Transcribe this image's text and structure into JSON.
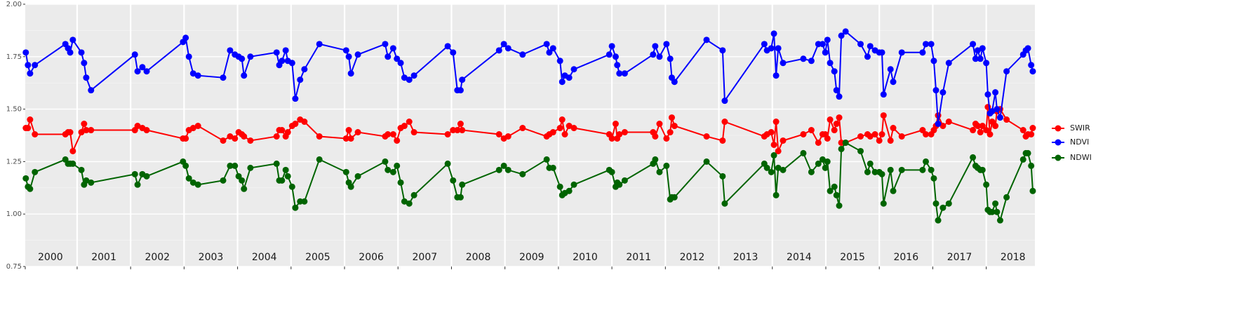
{
  "chart_data": {
    "type": "line",
    "x": [
      2000.04,
      2000.08,
      2000.12,
      2000.21,
      2000.78,
      2000.83,
      2000.87,
      2000.92,
      2001.08,
      2001.13,
      2001.17,
      2001.26,
      2002.08,
      2002.13,
      2002.22,
      2002.3,
      2002.98,
      2003.03,
      2003.09,
      2003.17,
      2003.26,
      2003.73,
      2003.86,
      2003.95,
      2004.02,
      2004.08,
      2004.12,
      2004.24,
      2004.73,
      2004.78,
      2004.83,
      2004.9,
      2004.94,
      2005.02,
      2005.08,
      2005.17,
      2005.25,
      2005.53,
      2006.03,
      2006.08,
      2006.12,
      2006.25,
      2006.76,
      2006.81,
      2006.91,
      2006.98,
      2007.05,
      2007.12,
      2007.21,
      2007.3,
      2007.93,
      2008.03,
      2008.11,
      2008.17,
      2008.2,
      2008.89,
      2008.98,
      2009.06,
      2009.33,
      2009.78,
      2009.83,
      2009.9,
      2010.03,
      2010.07,
      2010.12,
      2010.2,
      2010.29,
      2010.95,
      2011.0,
      2011.07,
      2011.1,
      2011.14,
      2011.24,
      2011.77,
      2011.81,
      2011.89,
      2012.02,
      2012.09,
      2012.12,
      2012.17,
      2012.77,
      2013.07,
      2013.11,
      2013.85,
      2013.9,
      2013.98,
      2014.03,
      2014.07,
      2014.11,
      2014.2,
      2014.58,
      2014.73,
      2014.86,
      2014.94,
      2014.99,
      2015.03,
      2015.08,
      2015.16,
      2015.2,
      2015.25,
      2015.29,
      2015.37,
      2015.65,
      2015.78,
      2015.83,
      2015.92,
      2016.0,
      2016.05,
      2016.08,
      2016.21,
      2016.26,
      2016.42,
      2016.81,
      2016.87,
      2016.97,
      2017.02,
      2017.06,
      2017.1,
      2017.19,
      2017.3,
      2017.75,
      2017.8,
      2017.84,
      2017.89,
      2017.93,
      2018.0,
      2018.03,
      2018.07,
      2018.11,
      2018.17,
      2018.2,
      2018.26,
      2018.38,
      2018.69,
      2018.74,
      2018.78,
      2018.84,
      2018.87
    ],
    "series": [
      {
        "name": "SWIR",
        "color": "#ff0000",
        "values": [
          1.41,
          1.41,
          1.45,
          1.38,
          1.38,
          1.39,
          1.39,
          1.3,
          1.39,
          1.43,
          1.4,
          1.4,
          1.4,
          1.42,
          1.41,
          1.4,
          1.36,
          1.36,
          1.4,
          1.41,
          1.42,
          1.35,
          1.37,
          1.36,
          1.39,
          1.38,
          1.37,
          1.35,
          1.37,
          1.4,
          1.4,
          1.37,
          1.39,
          1.42,
          1.43,
          1.45,
          1.44,
          1.37,
          1.36,
          1.4,
          1.36,
          1.39,
          1.37,
          1.38,
          1.38,
          1.35,
          1.41,
          1.42,
          1.44,
          1.39,
          1.38,
          1.4,
          1.4,
          1.43,
          1.4,
          1.38,
          1.36,
          1.37,
          1.41,
          1.37,
          1.38,
          1.39,
          1.41,
          1.45,
          1.38,
          1.42,
          1.41,
          1.38,
          1.36,
          1.43,
          1.36,
          1.38,
          1.39,
          1.39,
          1.37,
          1.43,
          1.36,
          1.39,
          1.46,
          1.42,
          1.37,
          1.35,
          1.44,
          1.37,
          1.38,
          1.39,
          1.33,
          1.44,
          1.3,
          1.35,
          1.38,
          1.4,
          1.34,
          1.38,
          1.38,
          1.36,
          1.45,
          1.4,
          1.43,
          1.46,
          1.34,
          1.34,
          1.37,
          1.38,
          1.37,
          1.38,
          1.35,
          1.38,
          1.47,
          1.35,
          1.41,
          1.37,
          1.4,
          1.38,
          1.38,
          1.4,
          1.42,
          1.47,
          1.42,
          1.44,
          1.4,
          1.43,
          1.42,
          1.39,
          1.42,
          1.4,
          1.51,
          1.38,
          1.44,
          1.42,
          1.49,
          1.5,
          1.45,
          1.4,
          1.37,
          1.38,
          1.38,
          1.41
        ]
      },
      {
        "name": "NDVI",
        "color": "#0000ff",
        "values": [
          1.77,
          1.71,
          1.67,
          1.71,
          1.81,
          1.79,
          1.77,
          1.83,
          1.77,
          1.72,
          1.65,
          1.59,
          1.76,
          1.68,
          1.7,
          1.68,
          1.82,
          1.84,
          1.75,
          1.67,
          1.66,
          1.65,
          1.78,
          1.76,
          1.75,
          1.74,
          1.66,
          1.75,
          1.77,
          1.71,
          1.73,
          1.78,
          1.73,
          1.72,
          1.55,
          1.64,
          1.69,
          1.81,
          1.78,
          1.75,
          1.67,
          1.76,
          1.81,
          1.75,
          1.79,
          1.74,
          1.72,
          1.65,
          1.64,
          1.66,
          1.8,
          1.77,
          1.59,
          1.59,
          1.64,
          1.78,
          1.81,
          1.79,
          1.76,
          1.81,
          1.77,
          1.79,
          1.73,
          1.63,
          1.66,
          1.65,
          1.69,
          1.76,
          1.8,
          1.75,
          1.71,
          1.67,
          1.67,
          1.76,
          1.8,
          1.75,
          1.81,
          1.74,
          1.65,
          1.63,
          1.83,
          1.78,
          1.54,
          1.81,
          1.78,
          1.79,
          1.86,
          1.66,
          1.79,
          1.72,
          1.74,
          1.73,
          1.81,
          1.81,
          1.77,
          1.83,
          1.72,
          1.68,
          1.59,
          1.56,
          1.85,
          1.87,
          1.81,
          1.75,
          1.8,
          1.78,
          1.77,
          1.77,
          1.57,
          1.69,
          1.63,
          1.77,
          1.77,
          1.81,
          1.81,
          1.73,
          1.59,
          1.43,
          1.58,
          1.72,
          1.81,
          1.74,
          1.78,
          1.74,
          1.79,
          1.72,
          1.57,
          1.48,
          1.49,
          1.58,
          1.5,
          1.46,
          1.68,
          1.76,
          1.78,
          1.79,
          1.71,
          1.68
        ]
      },
      {
        "name": "NDWI",
        "color": "#006400",
        "values": [
          1.17,
          1.13,
          1.12,
          1.2,
          1.26,
          1.24,
          1.24,
          1.24,
          1.21,
          1.14,
          1.16,
          1.15,
          1.19,
          1.14,
          1.19,
          1.18,
          1.25,
          1.23,
          1.17,
          1.15,
          1.14,
          1.16,
          1.23,
          1.23,
          1.18,
          1.16,
          1.12,
          1.22,
          1.24,
          1.16,
          1.16,
          1.21,
          1.18,
          1.13,
          1.03,
          1.06,
          1.06,
          1.26,
          1.2,
          1.15,
          1.13,
          1.18,
          1.25,
          1.21,
          1.2,
          1.23,
          1.15,
          1.06,
          1.05,
          1.09,
          1.24,
          1.16,
          1.08,
          1.08,
          1.14,
          1.21,
          1.23,
          1.21,
          1.19,
          1.26,
          1.22,
          1.22,
          1.13,
          1.09,
          1.1,
          1.11,
          1.14,
          1.21,
          1.2,
          1.13,
          1.15,
          1.14,
          1.16,
          1.24,
          1.26,
          1.2,
          1.23,
          1.07,
          1.08,
          1.08,
          1.25,
          1.18,
          1.05,
          1.24,
          1.22,
          1.2,
          1.28,
          1.09,
          1.22,
          1.21,
          1.29,
          1.2,
          1.24,
          1.26,
          1.22,
          1.25,
          1.11,
          1.13,
          1.09,
          1.04,
          1.31,
          1.34,
          1.3,
          1.2,
          1.24,
          1.2,
          1.2,
          1.19,
          1.05,
          1.21,
          1.11,
          1.21,
          1.21,
          1.25,
          1.21,
          1.17,
          1.05,
          0.97,
          1.03,
          1.05,
          1.27,
          1.23,
          1.22,
          1.21,
          1.21,
          1.14,
          1.02,
          1.01,
          1.01,
          1.05,
          1.01,
          0.97,
          1.08,
          1.26,
          1.29,
          1.29,
          1.23,
          1.11
        ]
      }
    ],
    "xlim": [
      2000.03,
      2018.91
    ],
    "xticks": [
      {
        "value": 2000,
        "label": "2000"
      },
      {
        "value": 2001,
        "label": "2001"
      },
      {
        "value": 2002,
        "label": "2002"
      },
      {
        "value": 2003,
        "label": "2003"
      },
      {
        "value": 2004,
        "label": "2004"
      },
      {
        "value": 2005,
        "label": "2005"
      },
      {
        "value": 2006,
        "label": "2006"
      },
      {
        "value": 2007,
        "label": "2007"
      },
      {
        "value": 2008,
        "label": "2008"
      },
      {
        "value": 2009,
        "label": "2009"
      },
      {
        "value": 2010,
        "label": "2010"
      },
      {
        "value": 2011,
        "label": "2011"
      },
      {
        "value": 2012,
        "label": "2012"
      },
      {
        "value": 2013,
        "label": "2013"
      },
      {
        "value": 2014,
        "label": "2014"
      },
      {
        "value": 2015,
        "label": "2015"
      },
      {
        "value": 2016,
        "label": "2016"
      },
      {
        "value": 2017,
        "label": "2017"
      },
      {
        "value": 2018,
        "label": "2018"
      }
    ],
    "ylim": [
      0.75,
      2.0
    ],
    "yticks": [
      0.75,
      {
        "value": 1.0,
        "label": "1.00"
      },
      1.25,
      {
        "value": 1.5,
        "label": "1.50"
      },
      1.75,
      {
        "value": 2.0,
        "label": "2.00"
      }
    ],
    "grid": true,
    "legend": "right"
  }
}
